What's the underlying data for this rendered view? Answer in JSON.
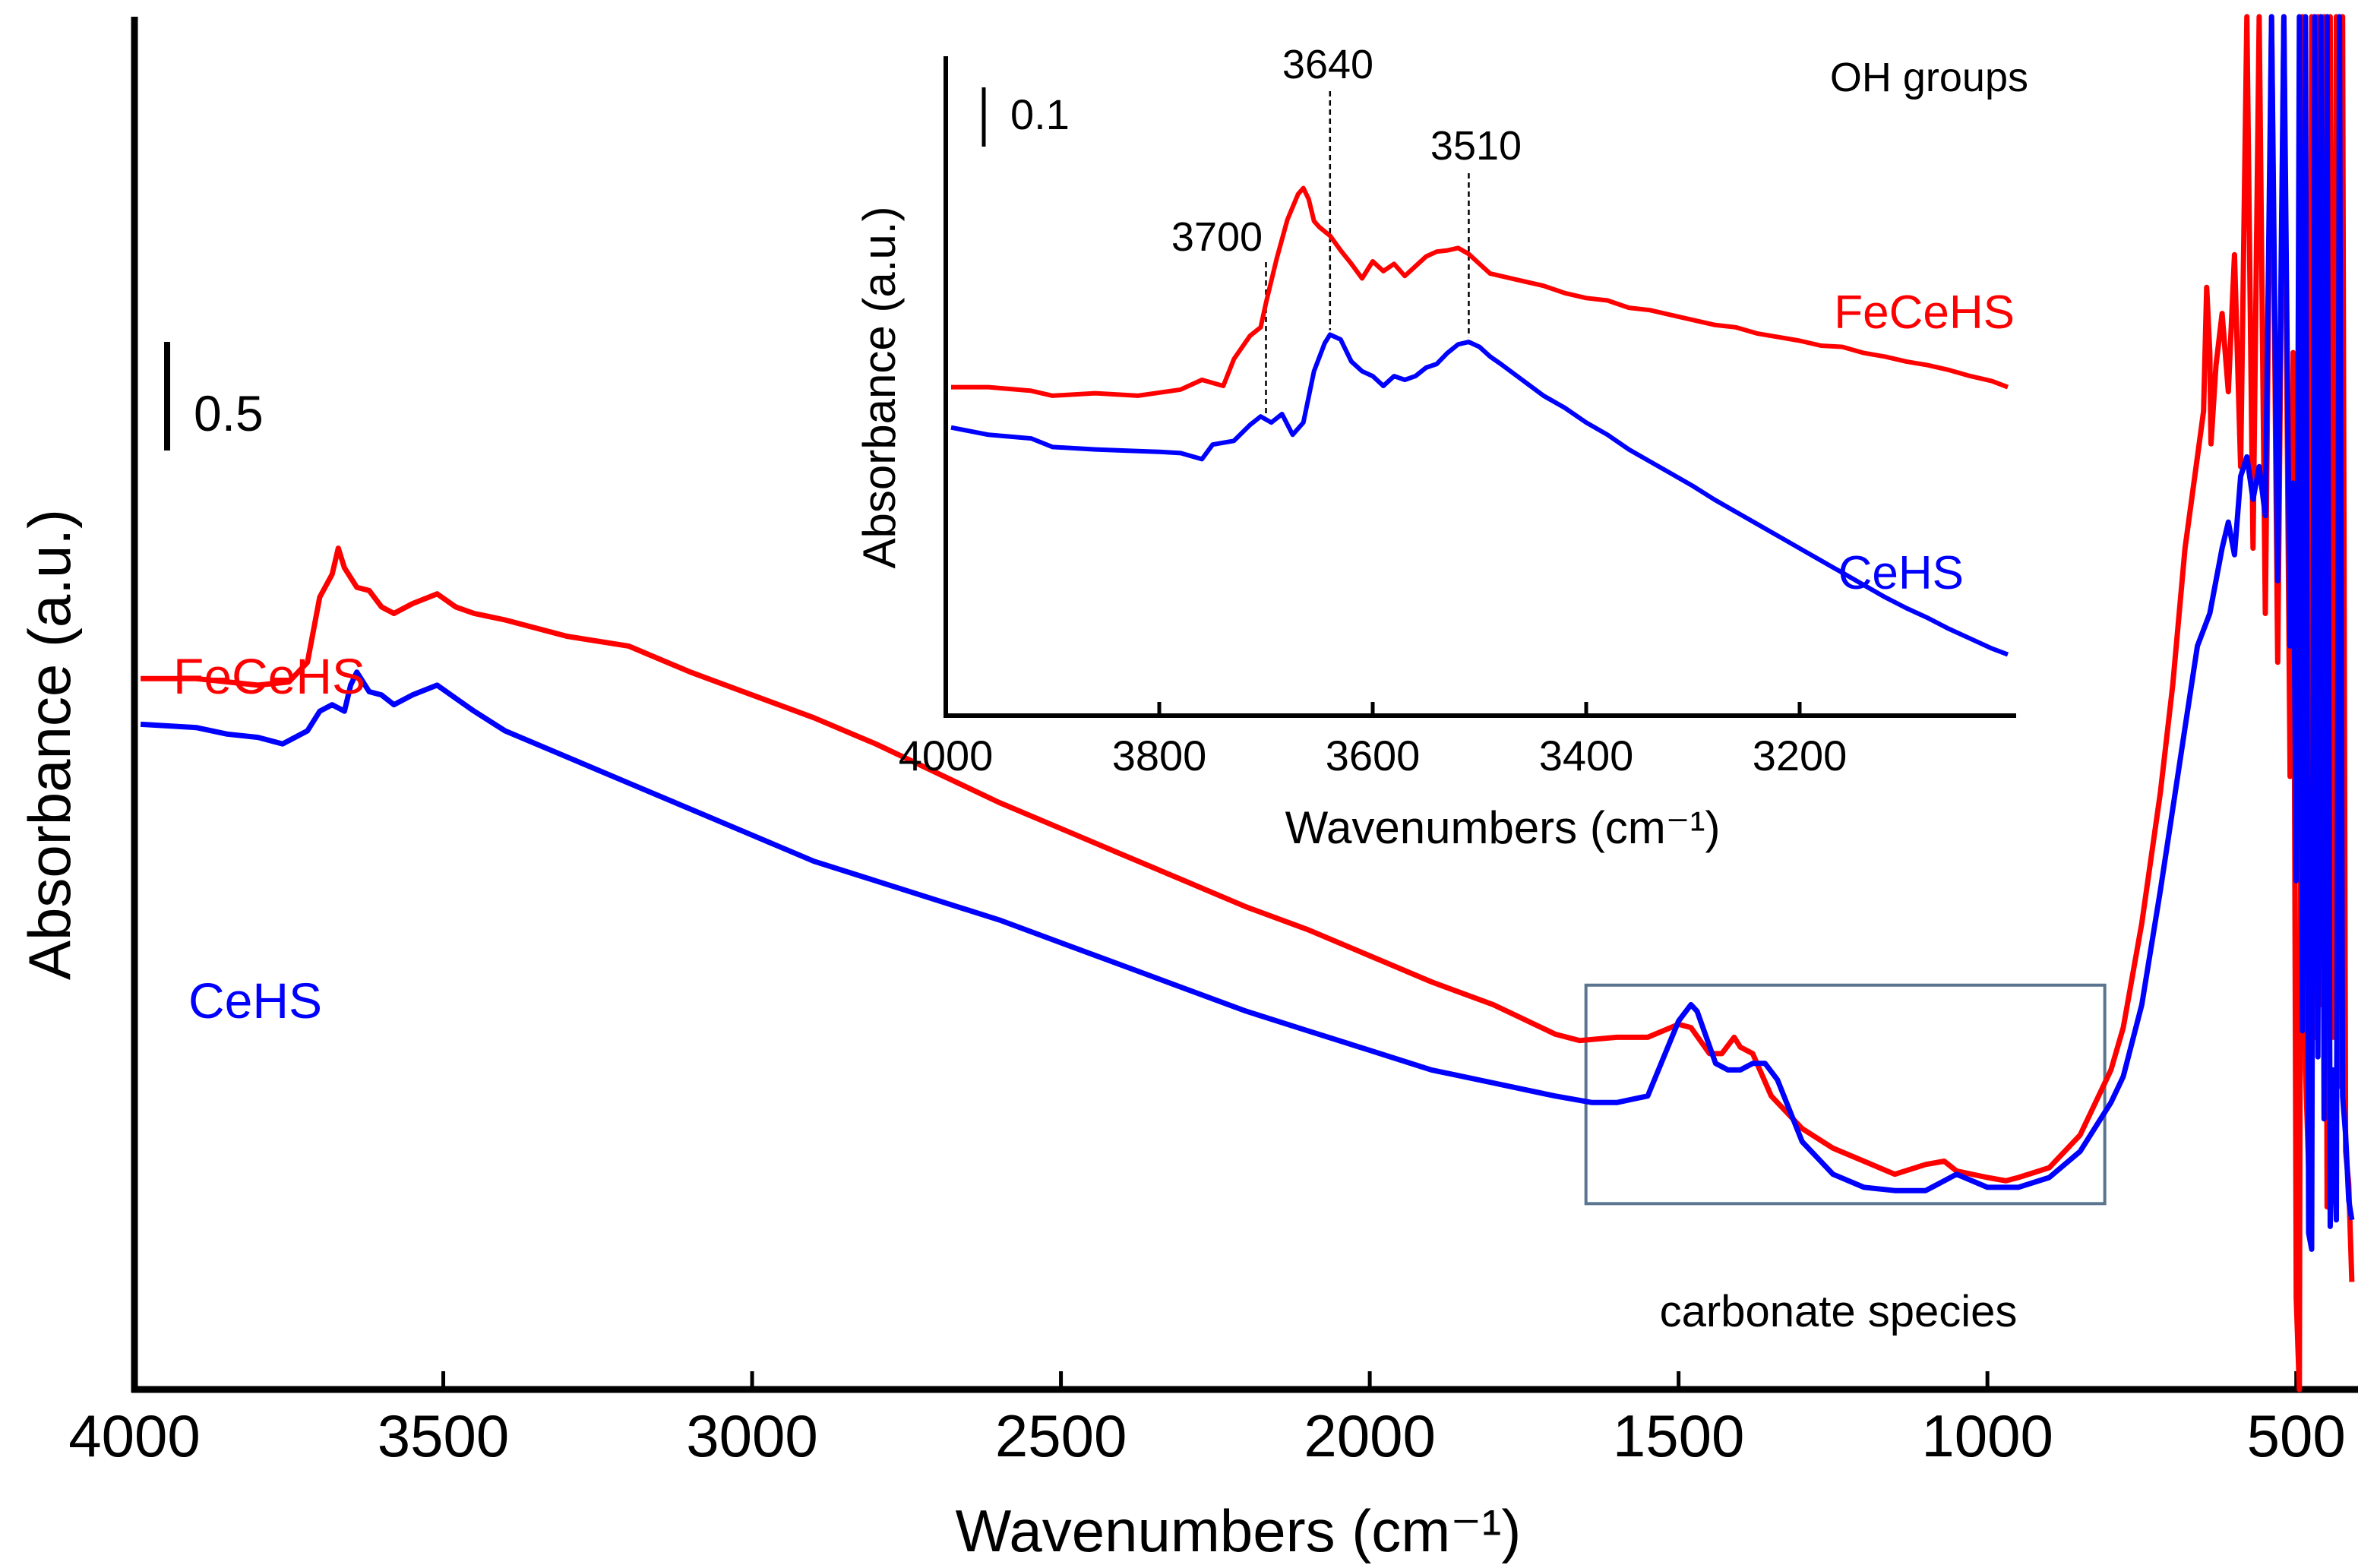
{
  "chart_data": [
    {
      "type": "line",
      "xlabel": "Wavenumbers (cm⁻¹)",
      "ylabel": "Absorbance (a.u.)",
      "xlim": [
        4000,
        400
      ],
      "x_reversed": true,
      "y_units": "absorbance (a.u., arbitrary offset)",
      "ylim": [
        -1.28,
        2.93
      ],
      "xticks": [
        4000,
        3500,
        3000,
        2500,
        2000,
        1500,
        1000,
        500
      ],
      "scale_bar_label": "0.5",
      "scale_bar_value": 0.5,
      "annotation": "carbonate species",
      "annotation_box": {
        "x_range": [
          1650,
          810
        ],
        "y_range": [
          -0.71,
          -0.04
        ]
      },
      "series": [
        {
          "name": "FeCeHS",
          "color": "#ff0000",
          "x": [
            3990,
            3900,
            3800,
            3750,
            3720,
            3700,
            3680,
            3670,
            3660,
            3640,
            3620,
            3600,
            3580,
            3550,
            3510,
            3480,
            3450,
            3400,
            3300,
            3200,
            3100,
            3000,
            2900,
            2800,
            2700,
            2600,
            2500,
            2400,
            2300,
            2200,
            2100,
            2000,
            1900,
            1800,
            1700,
            1660,
            1600,
            1550,
            1500,
            1480,
            1450,
            1430,
            1410,
            1400,
            1380,
            1350,
            1300,
            1250,
            1200,
            1150,
            1100,
            1070,
            1050,
            1000,
            970,
            950,
            900,
            850,
            800,
            780,
            750,
            720,
            700,
            680,
            660,
            650,
            645,
            640,
            638,
            630,
            620,
            610,
            600,
            590,
            580,
            570,
            560,
            550,
            540,
            530,
            520,
            510,
            505,
            500,
            495,
            490,
            485,
            480,
            475,
            470,
            465,
            460,
            455,
            450,
            445,
            440,
            435,
            430,
            425,
            420,
            415,
            410
          ],
          "values": [
            0.9,
            0.9,
            0.88,
            0.89,
            0.95,
            1.15,
            1.22,
            1.3,
            1.24,
            1.18,
            1.17,
            1.12,
            1.1,
            1.13,
            1.16,
            1.12,
            1.1,
            1.08,
            1.03,
            1.0,
            0.92,
            0.85,
            0.78,
            0.7,
            0.61,
            0.52,
            0.44,
            0.36,
            0.28,
            0.2,
            0.13,
            0.05,
            -0.03,
            -0.1,
            -0.19,
            -0.21,
            -0.2,
            -0.2,
            -0.16,
            -0.17,
            -0.25,
            -0.25,
            -0.2,
            -0.23,
            -0.25,
            -0.38,
            -0.48,
            -0.54,
            -0.58,
            -0.62,
            -0.59,
            -0.58,
            -0.61,
            -0.63,
            -0.64,
            -0.63,
            -0.6,
            -0.5,
            -0.3,
            -0.17,
            0.15,
            0.55,
            0.88,
            1.3,
            1.58,
            1.72,
            2.1,
            1.9,
            1.62,
            1.86,
            2.02,
            1.78,
            2.2,
            1.55,
            2.93,
            1.3,
            2.93,
            1.1,
            2.93,
            0.95,
            2.93,
            0.6,
            1.9,
            -1.0,
            -1.28,
            2.93,
            -0.3,
            -0.6,
            2.93,
            -0.2,
            2.93,
            -0.1,
            2.93,
            -0.72,
            2.93,
            -0.2,
            2.93,
            -0.35,
            2.93,
            -0.55,
            -0.65,
            -0.95
          ]
        },
        {
          "name": "CeHS",
          "color": "#0000ff",
          "x": [
            3990,
            3900,
            3850,
            3800,
            3760,
            3720,
            3700,
            3680,
            3660,
            3650,
            3640,
            3620,
            3600,
            3580,
            3550,
            3510,
            3480,
            3450,
            3400,
            3300,
            3200,
            3100,
            3000,
            2900,
            2800,
            2700,
            2600,
            2500,
            2400,
            2300,
            2200,
            2100,
            2000,
            1900,
            1800,
            1700,
            1640,
            1600,
            1550,
            1500,
            1480,
            1470,
            1440,
            1420,
            1400,
            1380,
            1360,
            1340,
            1300,
            1250,
            1200,
            1150,
            1100,
            1070,
            1050,
            1000,
            950,
            900,
            850,
            800,
            780,
            750,
            720,
            700,
            680,
            660,
            640,
            620,
            610,
            600,
            590,
            580,
            570,
            560,
            550,
            540,
            530,
            520,
            510,
            505,
            500,
            495,
            490,
            485,
            480,
            475,
            470,
            465,
            460,
            455,
            450,
            445,
            440,
            435,
            430,
            425,
            420,
            415,
            410
          ],
          "values": [
            0.76,
            0.75,
            0.73,
            0.72,
            0.7,
            0.74,
            0.8,
            0.82,
            0.8,
            0.88,
            0.92,
            0.86,
            0.85,
            0.82,
            0.85,
            0.88,
            0.84,
            0.8,
            0.74,
            0.66,
            0.58,
            0.5,
            0.42,
            0.34,
            0.28,
            0.22,
            0.16,
            0.09,
            0.02,
            -0.05,
            -0.12,
            -0.18,
            -0.24,
            -0.3,
            -0.34,
            -0.38,
            -0.4,
            -0.4,
            -0.38,
            -0.15,
            -0.1,
            -0.12,
            -0.28,
            -0.3,
            -0.3,
            -0.28,
            -0.28,
            -0.33,
            -0.52,
            -0.62,
            -0.66,
            -0.67,
            -0.67,
            -0.64,
            -0.62,
            -0.66,
            -0.66,
            -0.63,
            -0.55,
            -0.4,
            -0.32,
            -0.1,
            0.25,
            0.5,
            0.75,
            1.0,
            1.1,
            1.3,
            1.38,
            1.28,
            1.52,
            1.58,
            1.45,
            1.55,
            1.4,
            2.93,
            1.2,
            2.93,
            1.0,
            1.5,
            0.28,
            2.93,
            -0.18,
            2.93,
            -0.8,
            -0.85,
            2.93,
            -0.26,
            2.93,
            -0.45,
            2.93,
            -0.78,
            -0.3,
            -0.76,
            2.93,
            -0.38,
            -0.5,
            -0.7,
            -0.76
          ]
        }
      ]
    },
    {
      "type": "line",
      "title": "OH groups",
      "xlabel": "Wavenumbers (cm⁻¹)",
      "ylabel": "Absorbance (a.u.)",
      "xlim": [
        4000,
        3000
      ],
      "x_reversed": true,
      "y_units": "absorbance (a.u., arbitrary offset)",
      "ylim": [
        -0.05,
        0.49
      ],
      "xticks": [
        4000,
        3800,
        3600,
        3400,
        3200
      ],
      "scale_bar_label": "0.1",
      "scale_bar_value": 0.1,
      "peak_labels": [
        {
          "label": "3700",
          "x": 3700
        },
        {
          "label": "3640",
          "x": 3640
        },
        {
          "label": "3510",
          "x": 3510
        }
      ],
      "series": [
        {
          "name": "FeCeHS",
          "color": "#ff0000",
          "x": [
            3995,
            3960,
            3920,
            3900,
            3860,
            3820,
            3780,
            3760,
            3740,
            3730,
            3715,
            3705,
            3700,
            3690,
            3680,
            3670,
            3665,
            3660,
            3655,
            3650,
            3640,
            3630,
            3620,
            3610,
            3600,
            3590,
            3580,
            3570,
            3560,
            3550,
            3540,
            3530,
            3520,
            3510,
            3500,
            3490,
            3480,
            3460,
            3440,
            3420,
            3400,
            3380,
            3360,
            3340,
            3320,
            3300,
            3280,
            3260,
            3240,
            3220,
            3200,
            3180,
            3160,
            3140,
            3120,
            3100,
            3080,
            3060,
            3040,
            3020,
            3005
          ],
          "values": [
            0.219,
            0.219,
            0.216,
            0.212,
            0.214,
            0.212,
            0.217,
            0.225,
            0.22,
            0.242,
            0.261,
            0.268,
            0.288,
            0.324,
            0.356,
            0.377,
            0.382,
            0.373,
            0.355,
            0.35,
            0.343,
            0.331,
            0.32,
            0.308,
            0.322,
            0.314,
            0.32,
            0.31,
            0.318,
            0.326,
            0.33,
            0.331,
            0.333,
            0.328,
            0.32,
            0.312,
            0.31,
            0.306,
            0.302,
            0.296,
            0.292,
            0.29,
            0.284,
            0.282,
            0.278,
            0.274,
            0.27,
            0.268,
            0.263,
            0.26,
            0.257,
            0.253,
            0.252,
            0.247,
            0.244,
            0.24,
            0.237,
            0.233,
            0.228,
            0.224,
            0.219
          ]
        },
        {
          "name": "CeHS",
          "color": "#0000ff",
          "x": [
            3995,
            3960,
            3920,
            3900,
            3860,
            3830,
            3800,
            3780,
            3760,
            3750,
            3730,
            3715,
            3705,
            3695,
            3685,
            3675,
            3665,
            3655,
            3645,
            3640,
            3630,
            3620,
            3610,
            3600,
            3590,
            3580,
            3570,
            3560,
            3550,
            3540,
            3530,
            3520,
            3510,
            3500,
            3490,
            3480,
            3460,
            3440,
            3420,
            3400,
            3380,
            3360,
            3340,
            3320,
            3300,
            3280,
            3260,
            3240,
            3220,
            3200,
            3180,
            3160,
            3140,
            3120,
            3100,
            3080,
            3060,
            3040,
            3020,
            3005
          ],
          "values": [
            0.186,
            0.18,
            0.177,
            0.17,
            0.168,
            0.167,
            0.166,
            0.165,
            0.16,
            0.172,
            0.175,
            0.188,
            0.195,
            0.19,
            0.197,
            0.18,
            0.19,
            0.232,
            0.255,
            0.262,
            0.258,
            0.24,
            0.232,
            0.228,
            0.22,
            0.228,
            0.225,
            0.228,
            0.235,
            0.238,
            0.247,
            0.254,
            0.256,
            0.252,
            0.244,
            0.238,
            0.225,
            0.212,
            0.202,
            0.19,
            0.18,
            0.168,
            0.158,
            0.148,
            0.138,
            0.127,
            0.117,
            0.107,
            0.097,
            0.087,
            0.077,
            0.067,
            0.057,
            0.047,
            0.038,
            0.03,
            0.021,
            0.013,
            0.005,
            0.0
          ]
        }
      ]
    }
  ]
}
